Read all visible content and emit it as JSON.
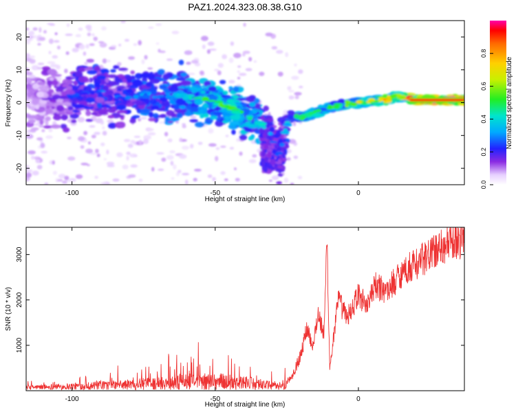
{
  "figure": {
    "title": "PAZ1.2024.323.08.38.G10"
  },
  "chart_data": [
    {
      "type": "heatmap",
      "xlabel": "Height of straight line (km)",
      "ylabel": "Frequency (Hz)",
      "xlim": [
        -116,
        37
      ],
      "ylim": [
        -25,
        25
      ],
      "x_ticks": [
        -100,
        -50,
        0
      ],
      "y_ticks": [
        -20,
        -10,
        0,
        10,
        20
      ],
      "colorbar": {
        "label": "Normalized spectral amplitude",
        "range": [
          0,
          1
        ],
        "ticks": [
          "0.0",
          "0.2",
          "0.4",
          "0.6",
          "0.8"
        ]
      },
      "ridge": [
        {
          "x": -112,
          "y": 2.0,
          "amp": 0.12
        },
        {
          "x": -105,
          "y": 0.5,
          "amp": 0.16
        },
        {
          "x": -98,
          "y": 2.5,
          "amp": 0.22
        },
        {
          "x": -90,
          "y": 3.5,
          "amp": 0.25
        },
        {
          "x": -82,
          "y": 1.5,
          "amp": 0.22
        },
        {
          "x": -75,
          "y": 2.5,
          "amp": 0.28
        },
        {
          "x": -68,
          "y": 1.5,
          "amp": 0.3
        },
        {
          "x": -62,
          "y": 2.0,
          "amp": 0.32
        },
        {
          "x": -56,
          "y": 1.5,
          "amp": 0.38
        },
        {
          "x": -50,
          "y": 0.0,
          "amp": 0.4
        },
        {
          "x": -45,
          "y": -1.5,
          "amp": 0.42
        },
        {
          "x": -40,
          "y": -3.5,
          "amp": 0.38
        },
        {
          "x": -35,
          "y": -6.0,
          "amp": 0.35
        },
        {
          "x": -31,
          "y": -9.0,
          "amp": 0.25
        },
        {
          "x": -28,
          "y": -17.0,
          "amp": 0.15
        },
        {
          "x": -24,
          "y": -4.0,
          "amp": 0.3
        },
        {
          "x": -20,
          "y": -4.5,
          "amp": 0.4
        },
        {
          "x": -15,
          "y": -3.0,
          "amp": 0.45
        },
        {
          "x": -10,
          "y": -1.5,
          "amp": 0.42
        },
        {
          "x": -5,
          "y": -0.5,
          "amp": 0.4
        },
        {
          "x": 0,
          "y": 0.0,
          "amp": 0.55
        },
        {
          "x": 5,
          "y": 0.5,
          "amp": 0.5
        },
        {
          "x": 10,
          "y": 0.8,
          "amp": 0.65
        },
        {
          "x": 13,
          "y": 2.0,
          "amp": 0.45
        },
        {
          "x": 20,
          "y": 0.8,
          "amp": 0.85
        },
        {
          "x": 30,
          "y": 0.8,
          "amp": 0.9
        },
        {
          "x": 37,
          "y": 0.8,
          "amp": 0.9
        }
      ]
    },
    {
      "type": "line",
      "xlabel": "Height of straight line (km)",
      "ylabel": "SNR (10 * v/v)",
      "xlim": [
        -116,
        37
      ],
      "ylim": [
        0,
        3600
      ],
      "x_ticks": [
        -100,
        -50,
        0
      ],
      "y_ticks": [
        1000,
        2000,
        3000
      ],
      "color": "#ee3333",
      "points": [
        {
          "x": -116,
          "y": 90
        },
        {
          "x": -110,
          "y": 110
        },
        {
          "x": -100,
          "y": 140
        },
        {
          "x": -90,
          "y": 170
        },
        {
          "x": -80,
          "y": 210
        },
        {
          "x": -70,
          "y": 260
        },
        {
          "x": -60,
          "y": 310
        },
        {
          "x": -50,
          "y": 340
        },
        {
          "x": -45,
          "y": 320
        },
        {
          "x": -40,
          "y": 280
        },
        {
          "x": -35,
          "y": 230
        },
        {
          "x": -30,
          "y": 160
        },
        {
          "x": -26,
          "y": 120
        },
        {
          "x": -23,
          "y": 350
        },
        {
          "x": -20,
          "y": 800
        },
        {
          "x": -18,
          "y": 1400
        },
        {
          "x": -16,
          "y": 1000
        },
        {
          "x": -14,
          "y": 1700
        },
        {
          "x": -12,
          "y": 1200
        },
        {
          "x": -11,
          "y": 3400
        },
        {
          "x": -10,
          "y": 500
        },
        {
          "x": -7,
          "y": 2000
        },
        {
          "x": -4,
          "y": 1600
        },
        {
          "x": 0,
          "y": 2100
        },
        {
          "x": 3,
          "y": 1900
        },
        {
          "x": 6,
          "y": 2300
        },
        {
          "x": 10,
          "y": 2200
        },
        {
          "x": 15,
          "y": 2600
        },
        {
          "x": 20,
          "y": 2800
        },
        {
          "x": 25,
          "y": 3000
        },
        {
          "x": 30,
          "y": 3200
        },
        {
          "x": 37,
          "y": 3350
        }
      ]
    }
  ]
}
